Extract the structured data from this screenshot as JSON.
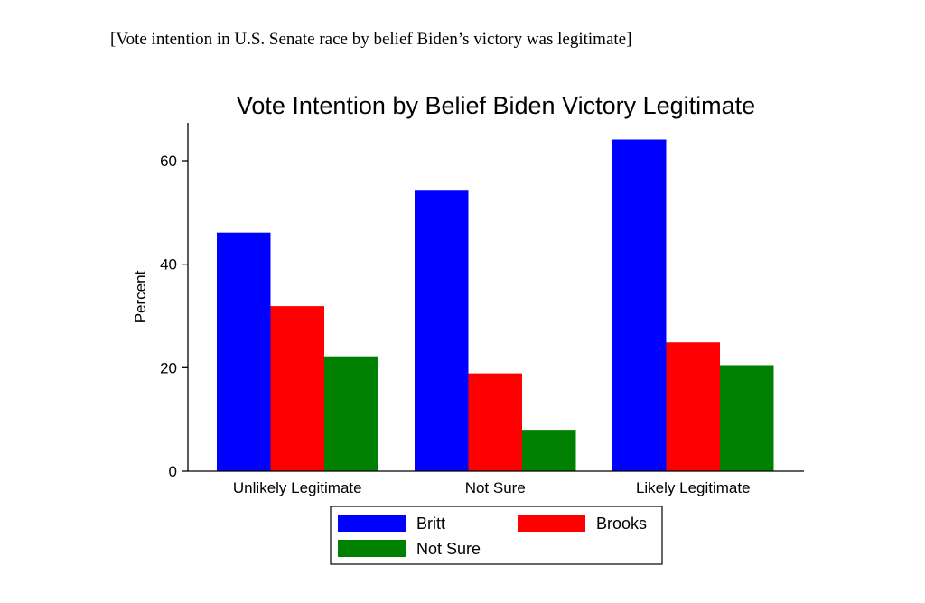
{
  "caption": "[Vote intention in U.S. Senate race by belief Biden’s victory was legitimate]",
  "chart_data": {
    "type": "bar",
    "title": "Vote Intention by Belief Biden Victory Legitimate",
    "xlabel": "",
    "ylabel": "Percent",
    "ylim": [
      0,
      67
    ],
    "yticks": [
      0,
      20,
      40,
      60
    ],
    "categories": [
      "Unlikely Legitimate",
      "Not Sure",
      "Likely Legitimate"
    ],
    "series": [
      {
        "name": "Britt",
        "color": "#0000ff",
        "values": [
          46.1,
          54.2,
          64.1
        ]
      },
      {
        "name": "Brooks",
        "color": "#ff0000",
        "values": [
          31.9,
          18.9,
          24.9
        ]
      },
      {
        "name": "Not Sure",
        "color": "#008000",
        "values": [
          22.2,
          8.0,
          20.5
        ]
      }
    ],
    "grid": false,
    "legend_position": "bottom"
  }
}
